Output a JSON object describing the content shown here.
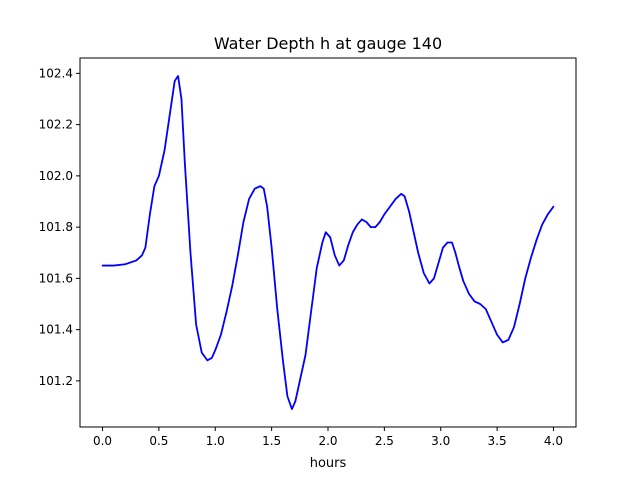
{
  "chart_data": {
    "type": "line",
    "title": "Water Depth h at gauge 140",
    "xlabel": "hours",
    "ylabel": "",
    "xlim": [
      -0.2,
      4.2
    ],
    "ylim": [
      101.02,
      102.46
    ],
    "xticks": [
      0.0,
      0.5,
      1.0,
      1.5,
      2.0,
      2.5,
      3.0,
      3.5,
      4.0
    ],
    "xtick_labels": [
      "0.0",
      "0.5",
      "1.0",
      "1.5",
      "2.0",
      "2.5",
      "3.0",
      "3.5",
      "4.0"
    ],
    "yticks": [
      101.2,
      101.4,
      101.6,
      101.8,
      102.0,
      102.2,
      102.4
    ],
    "ytick_labels": [
      "101.2",
      "101.4",
      "101.6",
      "101.8",
      "102.0",
      "102.2",
      "102.4"
    ],
    "grid": false,
    "series": [
      {
        "name": "h",
        "color": "#0000ff",
        "x": [
          0.0,
          0.1,
          0.2,
          0.3,
          0.35,
          0.38,
          0.42,
          0.46,
          0.5,
          0.55,
          0.6,
          0.64,
          0.67,
          0.7,
          0.73,
          0.78,
          0.83,
          0.88,
          0.93,
          0.97,
          1.0,
          1.05,
          1.1,
          1.15,
          1.2,
          1.25,
          1.3,
          1.35,
          1.4,
          1.43,
          1.46,
          1.5,
          1.55,
          1.6,
          1.64,
          1.68,
          1.71,
          1.75,
          1.8,
          1.85,
          1.9,
          1.95,
          1.98,
          2.02,
          2.06,
          2.1,
          2.14,
          2.18,
          2.22,
          2.26,
          2.3,
          2.34,
          2.38,
          2.42,
          2.46,
          2.5,
          2.55,
          2.6,
          2.65,
          2.68,
          2.72,
          2.76,
          2.8,
          2.85,
          2.9,
          2.94,
          2.98,
          3.02,
          3.06,
          3.1,
          3.13,
          3.16,
          3.2,
          3.25,
          3.3,
          3.35,
          3.4,
          3.45,
          3.5,
          3.55,
          3.6,
          3.65,
          3.7,
          3.75,
          3.8,
          3.85,
          3.9,
          3.95,
          4.0
        ],
        "y": [
          101.65,
          101.65,
          101.655,
          101.67,
          101.69,
          101.72,
          101.85,
          101.96,
          102.0,
          102.1,
          102.25,
          102.37,
          102.39,
          102.3,
          102.05,
          101.7,
          101.42,
          101.31,
          101.28,
          101.29,
          101.32,
          101.38,
          101.47,
          101.57,
          101.69,
          101.82,
          101.91,
          101.95,
          101.96,
          101.95,
          101.88,
          101.72,
          101.48,
          101.28,
          101.14,
          101.09,
          101.12,
          101.2,
          101.3,
          101.47,
          101.64,
          101.74,
          101.78,
          101.76,
          101.69,
          101.65,
          101.67,
          101.73,
          101.78,
          101.81,
          101.83,
          101.82,
          101.8,
          101.8,
          101.82,
          101.85,
          101.88,
          101.91,
          101.93,
          101.92,
          101.86,
          101.78,
          101.7,
          101.62,
          101.58,
          101.6,
          101.66,
          101.72,
          101.74,
          101.74,
          101.7,
          101.65,
          101.59,
          101.54,
          101.51,
          101.5,
          101.48,
          101.43,
          101.38,
          101.35,
          101.36,
          101.41,
          101.5,
          101.6,
          101.68,
          101.75,
          101.81,
          101.85,
          101.88
        ]
      }
    ]
  }
}
